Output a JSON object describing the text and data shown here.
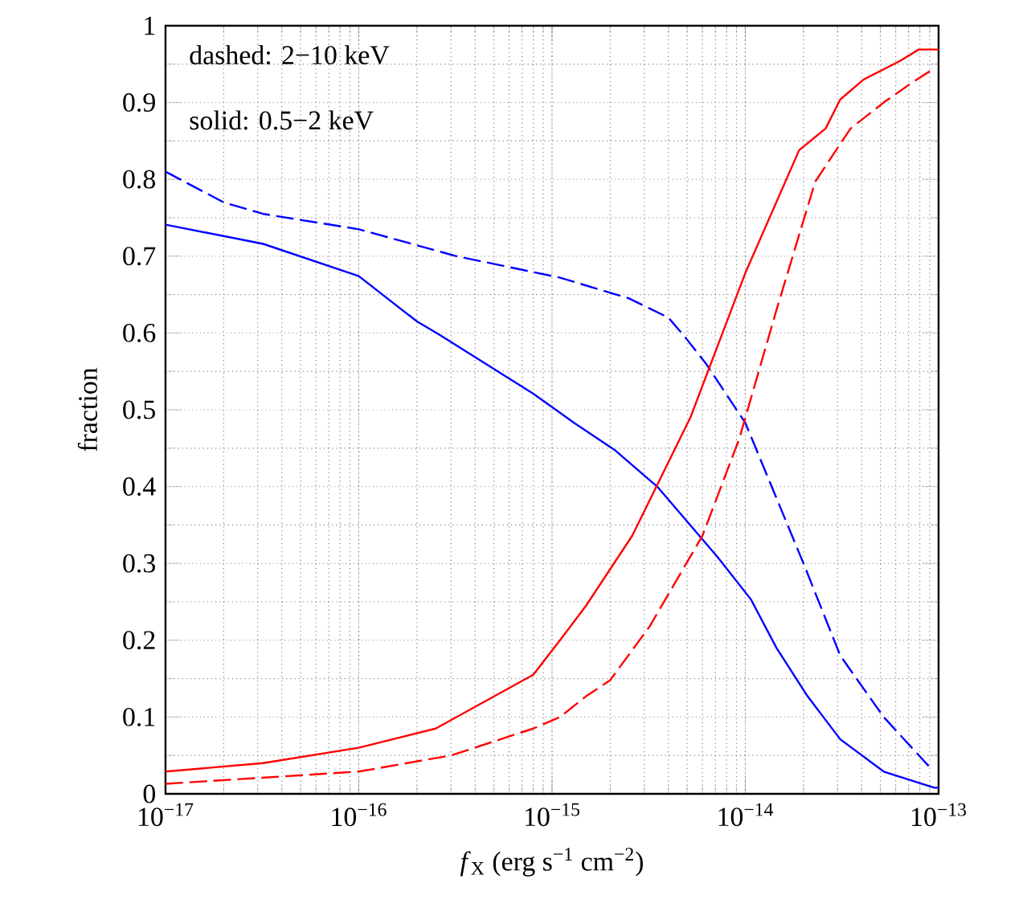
{
  "chart_data": {
    "type": "line",
    "xlabel": "*f*$_{X}$  (erg s$^{−1}$ cm$^{−2}$)",
    "ylabel": "fraction",
    "log": "x",
    "grid": true,
    "marker": "none",
    "xlim": [
      1e-17,
      1e-13
    ],
    "ylim": [
      0,
      1
    ],
    "xticks": [
      {
        "value": 1e-17,
        "label": "10$^{−17}$"
      },
      {
        "value": 1e-16,
        "label": "10$^{−16}$"
      },
      {
        "value": 1e-15,
        "label": "10$^{−15}$"
      },
      {
        "value": 1e-14,
        "label": "10$^{−14}$"
      },
      {
        "value": 1e-13,
        "label": "10$^{−13}$"
      }
    ],
    "yticks": [
      0,
      0.1,
      0.2,
      0.3,
      0.4,
      0.5,
      0.6,
      0.7,
      0.8,
      0.9,
      1
    ],
    "annotations": [
      "dashed:  2−10 keV",
      "solid:  0.5−2 keV"
    ],
    "series": [
      {
        "color": "#0000ff",
        "line_style": "dashed",
        "x": [
          1e-17,
          2e-17,
          3.2e-17,
          1e-16,
          3.2e-16,
          1.1e-15,
          2.5e-15,
          4e-15,
          4.9e-15,
          6.3e-15,
          1e-14,
          2e-14,
          3.1e-14,
          5.2e-14,
          8.9e-14
        ],
        "values": [
          0.81,
          0.77,
          0.755,
          0.735,
          0.7,
          0.672,
          0.645,
          0.62,
          0.594,
          0.559,
          0.483,
          0.3,
          0.18,
          0.1,
          0.036
        ]
      },
      {
        "color": "#0000ff",
        "line_style": "solid",
        "x": [
          1e-17,
          3.2e-17,
          1e-16,
          2e-16,
          2.6e-16,
          8e-16,
          1.3e-15,
          2.1e-15,
          3.5e-15,
          7.2e-15,
          1.07e-14,
          1.45e-14,
          2.1e-14,
          3.1e-14,
          5.2e-14,
          9.5e-14,
          1e-13
        ],
        "values": [
          0.741,
          0.716,
          0.674,
          0.615,
          0.598,
          0.521,
          0.483,
          0.448,
          0.4,
          0.308,
          0.253,
          0.19,
          0.127,
          0.071,
          0.029,
          0.008,
          0.008
        ]
      },
      {
        "color": "#ff0000",
        "line_style": "solid",
        "x": [
          1e-17,
          3.2e-17,
          1e-16,
          2.5e-16,
          8e-16,
          1.1e-15,
          1.5e-15,
          2.6e-15,
          5.2e-15,
          1e-14,
          1.9e-14,
          2.6e-14,
          3.1e-14,
          4.1e-14,
          6.3e-14,
          7.9e-14,
          1e-13
        ],
        "values": [
          0.029,
          0.04,
          0.06,
          0.085,
          0.155,
          0.2,
          0.245,
          0.336,
          0.49,
          0.678,
          0.838,
          0.866,
          0.904,
          0.93,
          0.954,
          0.969,
          0.969
        ]
      },
      {
        "color": "#ff0000",
        "line_style": "dashed",
        "x": [
          1e-17,
          1e-16,
          3e-16,
          8e-16,
          1.1e-15,
          1.5e-15,
          2e-15,
          3.2e-15,
          6e-15,
          9.3e-15,
          1.45e-14,
          2.3e-14,
          3.5e-14,
          5.2e-14,
          7.2e-14,
          9.3e-14
        ],
        "values": [
          0.013,
          0.029,
          0.05,
          0.085,
          0.1,
          0.127,
          0.148,
          0.218,
          0.336,
          0.462,
          0.63,
          0.797,
          0.866,
          0.9,
          0.925,
          0.943
        ]
      }
    ]
  }
}
